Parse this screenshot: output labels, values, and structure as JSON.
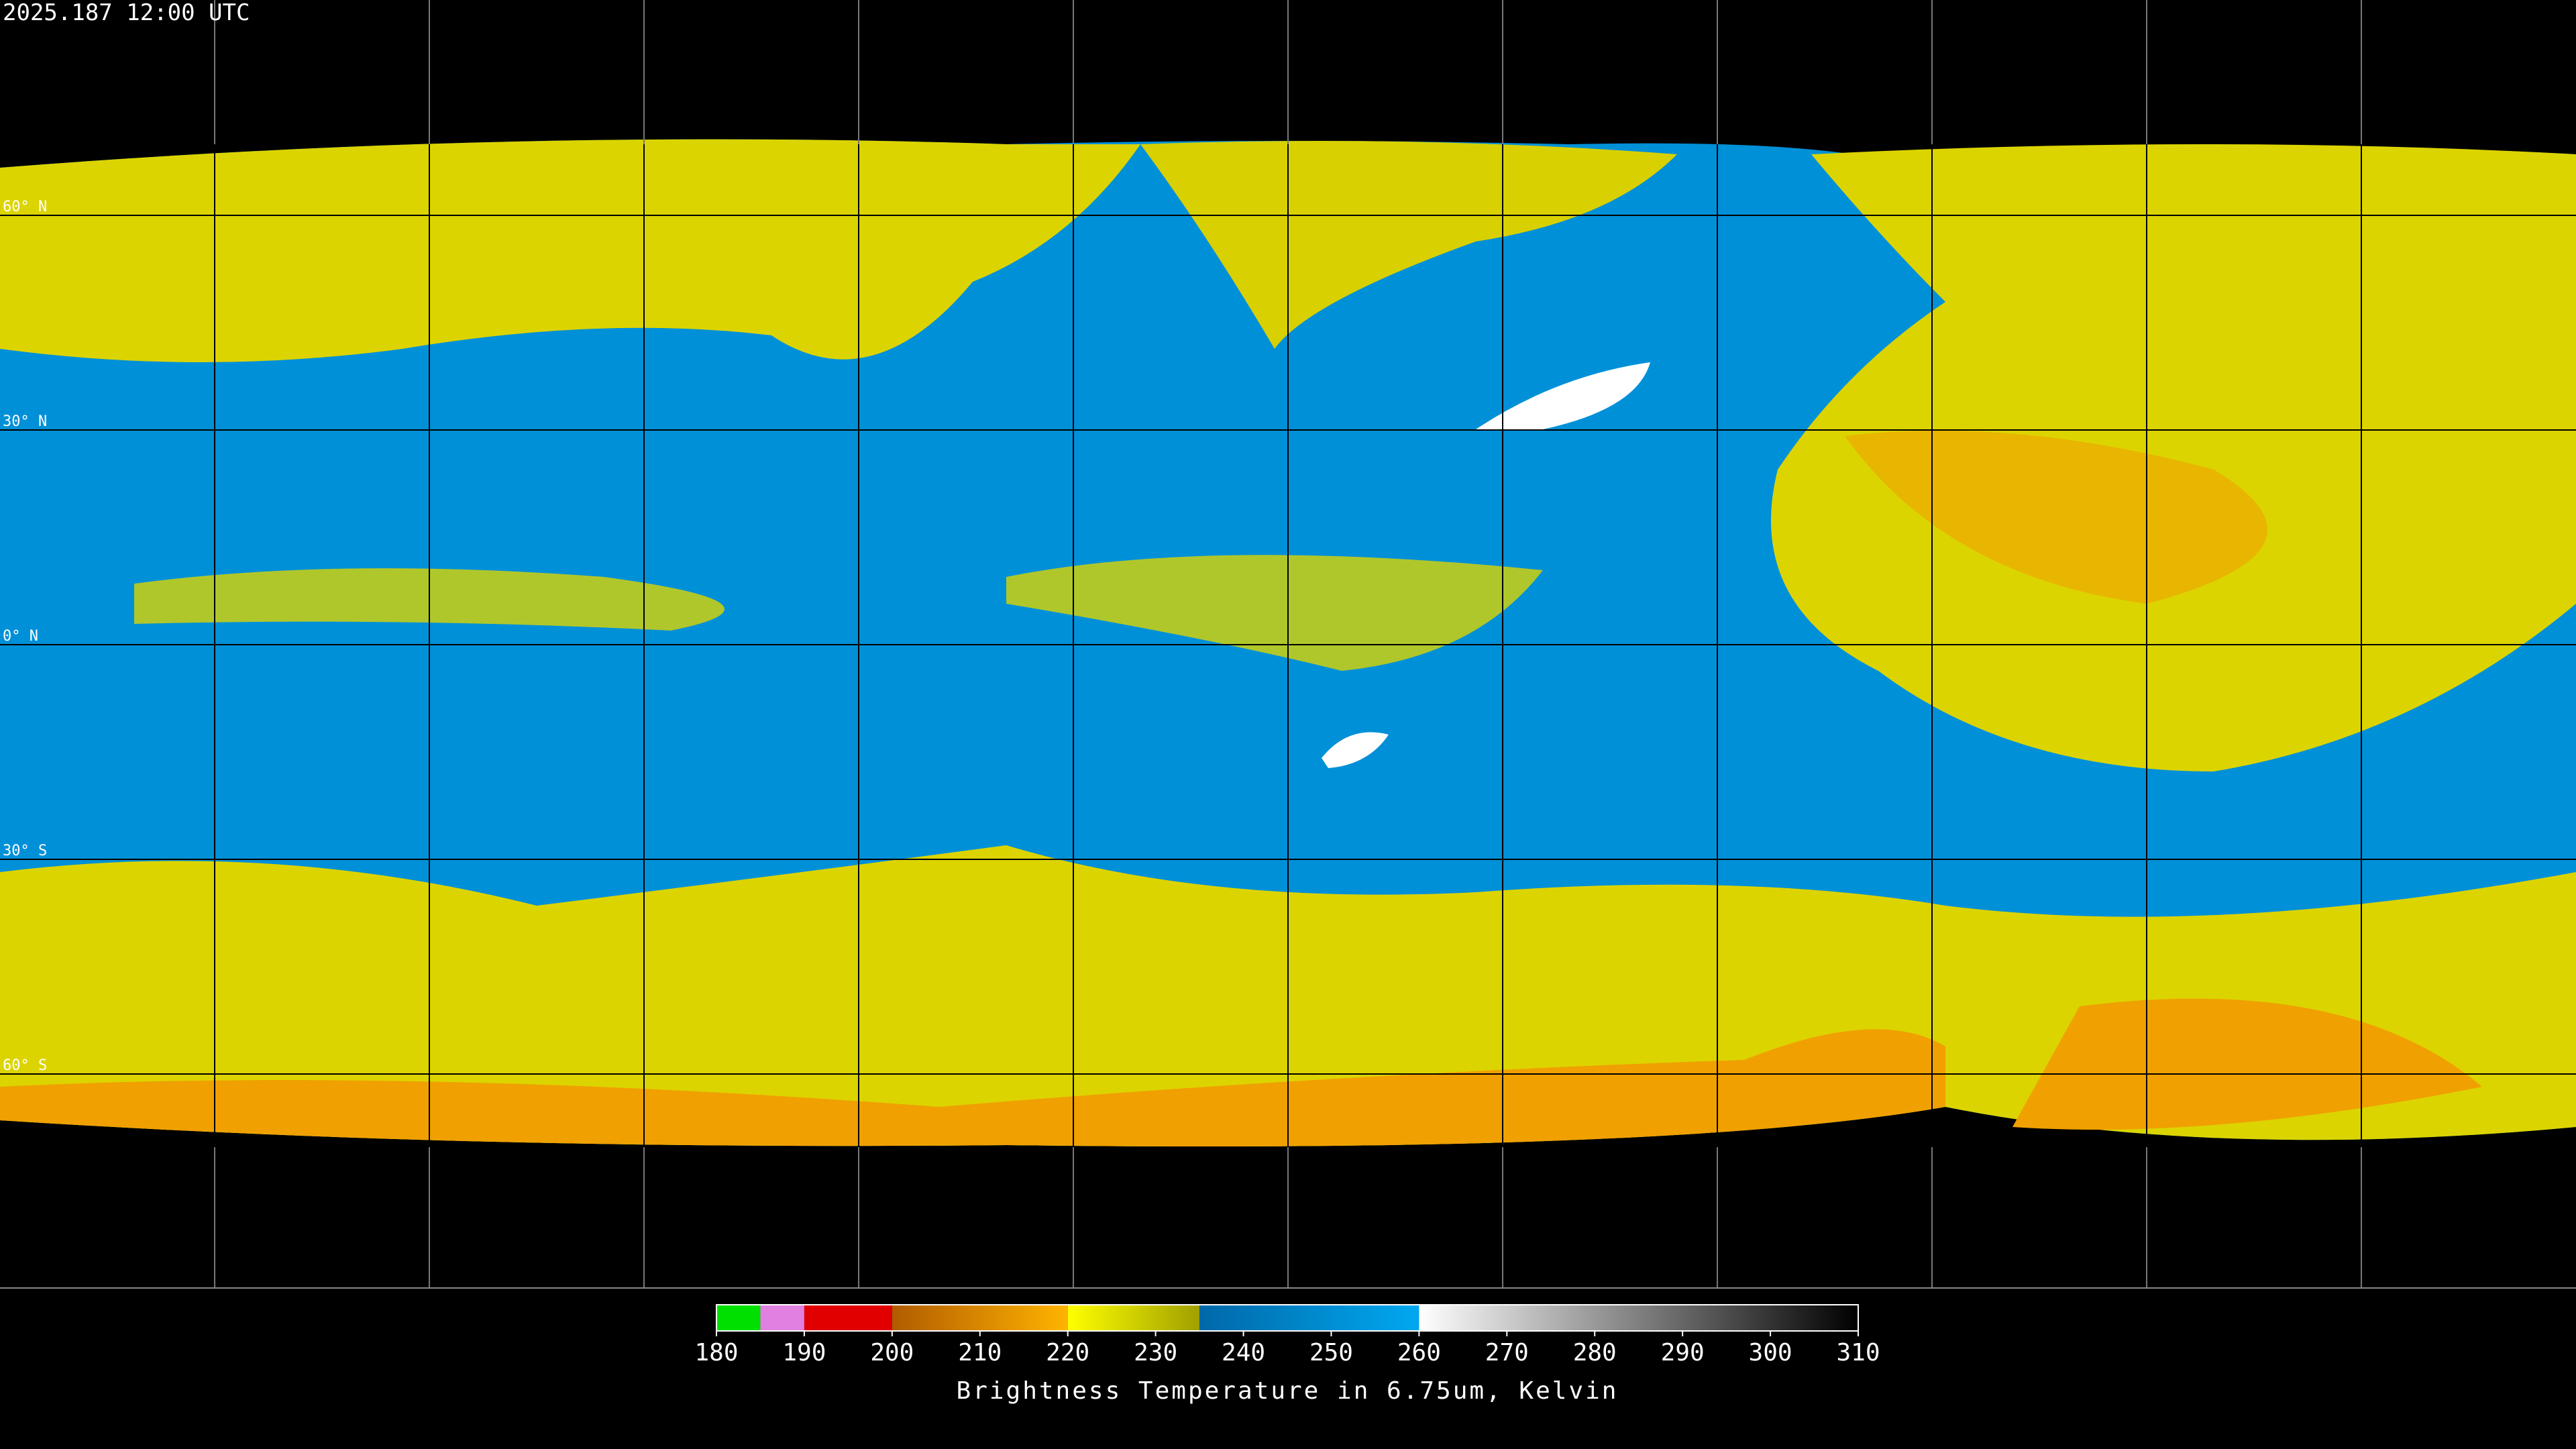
{
  "header": {
    "timestamp": "2025.187 12:00 UTC"
  },
  "map": {
    "lat_labels": [
      "60° N",
      "30° N",
      "0° N",
      "30° S",
      "60° S"
    ]
  },
  "colorbar": {
    "title": "Brightness Temperature in 6.75um, Kelvin",
    "lim": [
      180,
      310
    ],
    "ticks": [
      180,
      190,
      200,
      210,
      220,
      230,
      240,
      250,
      260,
      270,
      280,
      290,
      300,
      310
    ],
    "segments": [
      {
        "from": 180,
        "to": 185,
        "colors": [
          "#00e000",
          "#00e000"
        ]
      },
      {
        "from": 185,
        "to": 190,
        "colors": [
          "#e080e0",
          "#e080e0"
        ]
      },
      {
        "from": 190,
        "to": 200,
        "colors": [
          "#e00000",
          "#e00000"
        ]
      },
      {
        "from": 200,
        "to": 220,
        "colors": [
          "#b05c00",
          "#ffb400"
        ]
      },
      {
        "from": 220,
        "to": 235,
        "colors": [
          "#ffff00",
          "#a0a000"
        ]
      },
      {
        "from": 235,
        "to": 260,
        "colors": [
          "#0068a8",
          "#00a8f0"
        ]
      },
      {
        "from": 260,
        "to": 310,
        "colors": [
          "#ffffff",
          "#000000"
        ]
      }
    ]
  }
}
